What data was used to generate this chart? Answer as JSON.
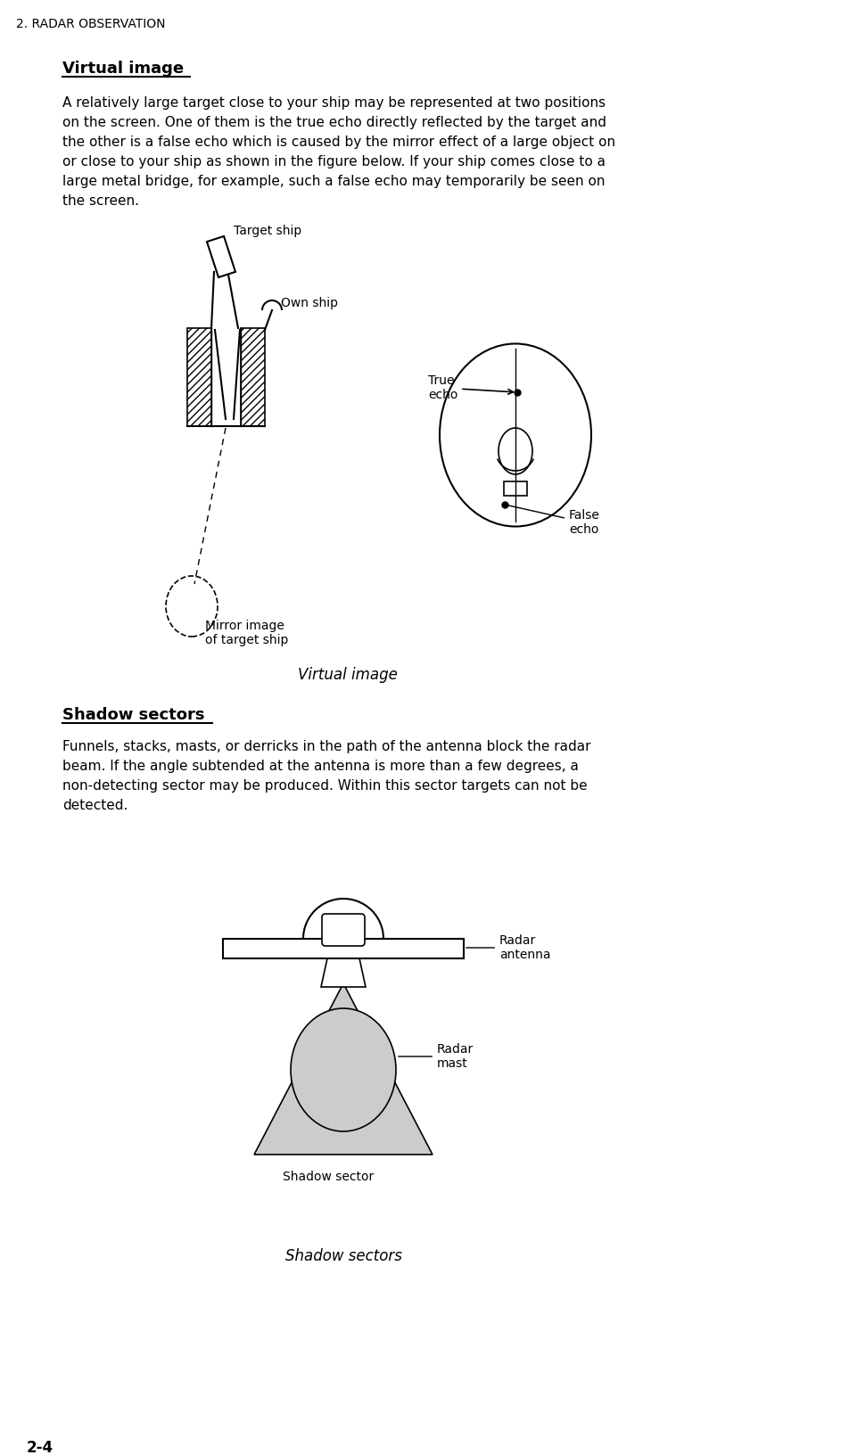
{
  "page_header": "2. RADAR OBSERVATION",
  "page_number": "2-4",
  "section1_title": "Virtual image",
  "fig1_caption": "Virtual image",
  "section2_title": "Shadow sectors",
  "fig2_caption": "Shadow sectors",
  "bg_color": "#ffffff",
  "text_color": "#000000",
  "shadow_color": "#cccccc",
  "section1_lines": [
    "A relatively large target close to your ship may be represented at two positions",
    "on the screen. One of them is the true echo directly reflected by the target and",
    "the other is a false echo which is caused by the mirror effect of a large object on",
    "or close to your ship as shown in the figure below. If your ship comes close to a",
    "large metal bridge, for example, such a false echo may temporarily be seen on",
    "the screen."
  ],
  "section2_lines": [
    "Funnels, stacks, masts, or derricks in the path of the antenna block the radar",
    "beam. If the angle subtended at the antenna is more than a few degrees, a",
    "non-detecting sector may be produced. Within this sector targets can not be",
    "detected."
  ]
}
